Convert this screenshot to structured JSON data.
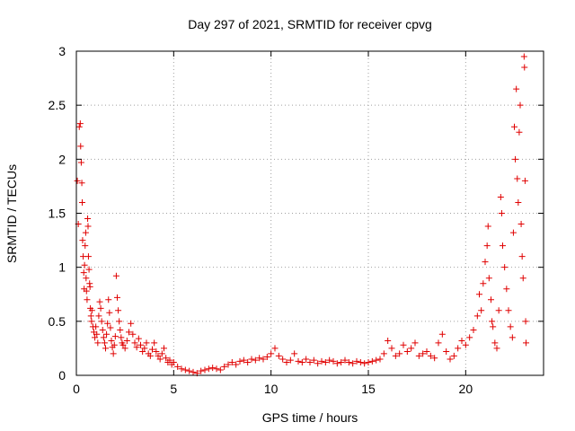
{
  "chart_data": {
    "type": "scatter",
    "title": "Day 297 of 2021, SRMTID for receiver cpvg",
    "xlabel": "GPS time / hours",
    "ylabel": "SRMTID / TECUs",
    "xlim": [
      0,
      24
    ],
    "ylim": [
      0,
      3
    ],
    "xticks": [
      0,
      5,
      10,
      15,
      20
    ],
    "yticks": [
      0,
      0.5,
      1,
      1.5,
      2,
      2.5,
      3
    ],
    "xtick_labels": [
      "0",
      "5",
      "10",
      "15",
      "20"
    ],
    "ytick_labels": [
      "0",
      "0.5",
      "1",
      "1.5",
      "2",
      "2.5",
      "3"
    ],
    "grid": true,
    "marker": "+",
    "color": "#e00000",
    "series": [
      {
        "name": "SRMTID",
        "points": [
          [
            0.05,
            1.8
          ],
          [
            0.1,
            1.4
          ],
          [
            0.15,
            2.3
          ],
          [
            0.2,
            2.33
          ],
          [
            0.22,
            2.12
          ],
          [
            0.25,
            1.97
          ],
          [
            0.28,
            1.78
          ],
          [
            0.3,
            1.6
          ],
          [
            0.32,
            1.25
          ],
          [
            0.35,
            1.1
          ],
          [
            0.38,
            0.95
          ],
          [
            0.4,
            0.8
          ],
          [
            0.42,
            1.02
          ],
          [
            0.45,
            1.2
          ],
          [
            0.48,
            1.32
          ],
          [
            0.5,
            0.9
          ],
          [
            0.52,
            0.78
          ],
          [
            0.55,
            0.7
          ],
          [
            0.58,
            1.45
          ],
          [
            0.6,
            1.38
          ],
          [
            0.62,
            1.1
          ],
          [
            0.65,
            0.98
          ],
          [
            0.68,
            0.85
          ],
          [
            0.7,
            0.82
          ],
          [
            0.72,
            0.62
          ],
          [
            0.75,
            0.55
          ],
          [
            0.78,
            0.5
          ],
          [
            0.8,
            0.6
          ],
          [
            0.85,
            0.45
          ],
          [
            0.9,
            0.4
          ],
          [
            0.95,
            0.35
          ],
          [
            1.0,
            0.45
          ],
          [
            1.05,
            0.38
          ],
          [
            1.1,
            0.3
          ],
          [
            1.15,
            0.55
          ],
          [
            1.2,
            0.68
          ],
          [
            1.25,
            0.62
          ],
          [
            1.3,
            0.5
          ],
          [
            1.35,
            0.42
          ],
          [
            1.4,
            0.35
          ],
          [
            1.45,
            0.3
          ],
          [
            1.5,
            0.25
          ],
          [
            1.55,
            0.38
          ],
          [
            1.6,
            0.48
          ],
          [
            1.65,
            0.7
          ],
          [
            1.7,
            0.58
          ],
          [
            1.75,
            0.44
          ],
          [
            1.8,
            0.32
          ],
          [
            1.85,
            0.26
          ],
          [
            1.9,
            0.2
          ],
          [
            1.95,
            0.28
          ],
          [
            2.0,
            0.36
          ],
          [
            2.05,
            0.92
          ],
          [
            2.1,
            0.72
          ],
          [
            2.15,
            0.6
          ],
          [
            2.2,
            0.5
          ],
          [
            2.25,
            0.42
          ],
          [
            2.3,
            0.35
          ],
          [
            2.35,
            0.3
          ],
          [
            2.4,
            0.28
          ],
          [
            2.5,
            0.25
          ],
          [
            2.6,
            0.32
          ],
          [
            2.7,
            0.4
          ],
          [
            2.8,
            0.48
          ],
          [
            2.9,
            0.38
          ],
          [
            3.0,
            0.3
          ],
          [
            3.1,
            0.26
          ],
          [
            3.2,
            0.34
          ],
          [
            3.3,
            0.28
          ],
          [
            3.4,
            0.22
          ],
          [
            3.5,
            0.25
          ],
          [
            3.6,
            0.3
          ],
          [
            3.7,
            0.2
          ],
          [
            3.8,
            0.18
          ],
          [
            3.9,
            0.24
          ],
          [
            4.0,
            0.3
          ],
          [
            4.1,
            0.22
          ],
          [
            4.2,
            0.18
          ],
          [
            4.3,
            0.15
          ],
          [
            4.4,
            0.2
          ],
          [
            4.5,
            0.25
          ],
          [
            4.6,
            0.16
          ],
          [
            4.7,
            0.12
          ],
          [
            4.8,
            0.14
          ],
          [
            4.9,
            0.1
          ],
          [
            5.0,
            0.12
          ],
          [
            5.2,
            0.08
          ],
          [
            5.4,
            0.06
          ],
          [
            5.6,
            0.05
          ],
          [
            5.8,
            0.04
          ],
          [
            6.0,
            0.03
          ],
          [
            6.2,
            0.02
          ],
          [
            6.4,
            0.04
          ],
          [
            6.6,
            0.05
          ],
          [
            6.8,
            0.06
          ],
          [
            7.0,
            0.07
          ],
          [
            7.2,
            0.06
          ],
          [
            7.4,
            0.05
          ],
          [
            7.6,
            0.08
          ],
          [
            7.8,
            0.1
          ],
          [
            8.0,
            0.12
          ],
          [
            8.2,
            0.1
          ],
          [
            8.4,
            0.13
          ],
          [
            8.6,
            0.14
          ],
          [
            8.8,
            0.12
          ],
          [
            9.0,
            0.15
          ],
          [
            9.2,
            0.14
          ],
          [
            9.4,
            0.16
          ],
          [
            9.6,
            0.15
          ],
          [
            9.8,
            0.17
          ],
          [
            10.0,
            0.2
          ],
          [
            10.2,
            0.25
          ],
          [
            10.4,
            0.18
          ],
          [
            10.6,
            0.15
          ],
          [
            10.8,
            0.12
          ],
          [
            11.0,
            0.14
          ],
          [
            11.2,
            0.2
          ],
          [
            11.4,
            0.13
          ],
          [
            11.6,
            0.12
          ],
          [
            11.8,
            0.15
          ],
          [
            12.0,
            0.12
          ],
          [
            12.2,
            0.14
          ],
          [
            12.4,
            0.11
          ],
          [
            12.6,
            0.13
          ],
          [
            12.8,
            0.12
          ],
          [
            13.0,
            0.14
          ],
          [
            13.2,
            0.13
          ],
          [
            13.4,
            0.11
          ],
          [
            13.6,
            0.12
          ],
          [
            13.8,
            0.14
          ],
          [
            14.0,
            0.12
          ],
          [
            14.2,
            0.11
          ],
          [
            14.4,
            0.13
          ],
          [
            14.6,
            0.12
          ],
          [
            14.8,
            0.11
          ],
          [
            15.0,
            0.12
          ],
          [
            15.2,
            0.13
          ],
          [
            15.4,
            0.14
          ],
          [
            15.6,
            0.15
          ],
          [
            15.8,
            0.2
          ],
          [
            16.0,
            0.32
          ],
          [
            16.2,
            0.25
          ],
          [
            16.4,
            0.18
          ],
          [
            16.6,
            0.2
          ],
          [
            16.8,
            0.28
          ],
          [
            17.0,
            0.22
          ],
          [
            17.2,
            0.25
          ],
          [
            17.4,
            0.3
          ],
          [
            17.6,
            0.18
          ],
          [
            17.8,
            0.2
          ],
          [
            18.0,
            0.22
          ],
          [
            18.2,
            0.18
          ],
          [
            18.4,
            0.16
          ],
          [
            18.6,
            0.3
          ],
          [
            18.8,
            0.38
          ],
          [
            19.0,
            0.22
          ],
          [
            19.2,
            0.15
          ],
          [
            19.4,
            0.18
          ],
          [
            19.6,
            0.25
          ],
          [
            19.8,
            0.32
          ],
          [
            20.0,
            0.28
          ],
          [
            20.2,
            0.35
          ],
          [
            20.4,
            0.42
          ],
          [
            20.6,
            0.55
          ],
          [
            20.7,
            0.75
          ],
          [
            20.8,
            0.6
          ],
          [
            20.9,
            0.85
          ],
          [
            21.0,
            1.05
          ],
          [
            21.1,
            1.2
          ],
          [
            21.15,
            1.38
          ],
          [
            21.2,
            0.9
          ],
          [
            21.3,
            0.7
          ],
          [
            21.35,
            0.5
          ],
          [
            21.4,
            0.45
          ],
          [
            21.5,
            0.3
          ],
          [
            21.6,
            0.25
          ],
          [
            21.7,
            0.6
          ],
          [
            21.8,
            1.65
          ],
          [
            21.85,
            1.5
          ],
          [
            21.9,
            1.2
          ],
          [
            22.0,
            1.0
          ],
          [
            22.1,
            0.8
          ],
          [
            22.2,
            0.6
          ],
          [
            22.3,
            0.45
          ],
          [
            22.4,
            0.35
          ],
          [
            22.45,
            1.32
          ],
          [
            22.5,
            2.3
          ],
          [
            22.55,
            2.0
          ],
          [
            22.6,
            2.65
          ],
          [
            22.65,
            1.82
          ],
          [
            22.7,
            1.6
          ],
          [
            22.75,
            2.25
          ],
          [
            22.8,
            2.5
          ],
          [
            22.85,
            1.4
          ],
          [
            22.9,
            1.1
          ],
          [
            22.95,
            0.9
          ],
          [
            23.0,
            2.95
          ],
          [
            23.02,
            2.85
          ],
          [
            23.05,
            1.8
          ],
          [
            23.08,
            0.5
          ],
          [
            23.1,
            0.3
          ]
        ]
      }
    ]
  }
}
